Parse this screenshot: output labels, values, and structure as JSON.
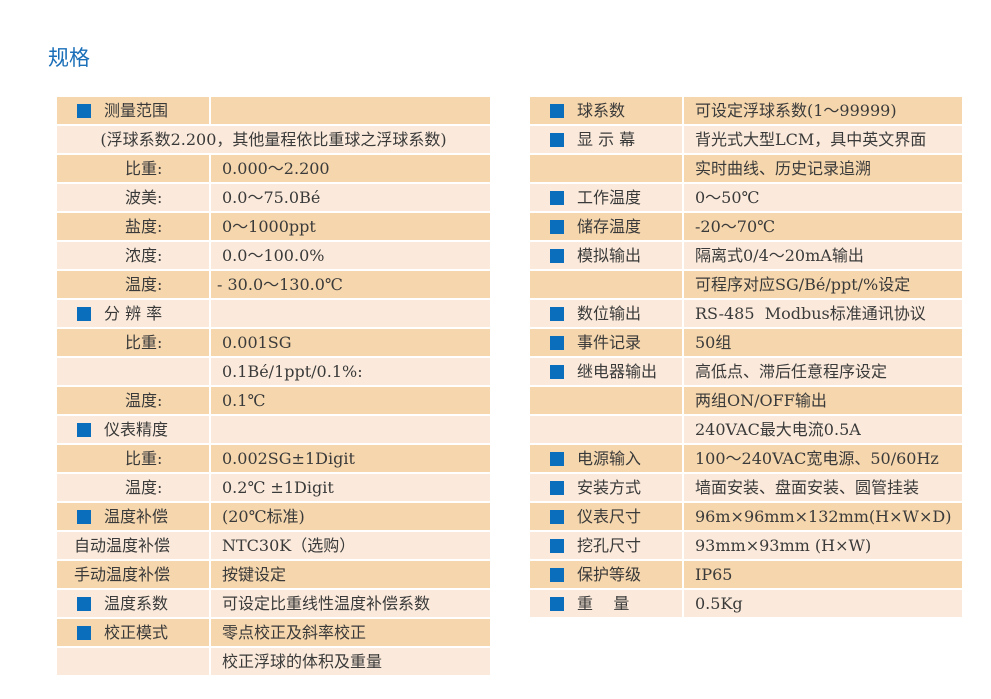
{
  "title": "规格",
  "colors": {
    "accent": "#0a6ebd",
    "row_dark": "#f5d6ad",
    "row_light": "#fbeadb"
  },
  "left": [
    {
      "marker": true,
      "label": "测量范围",
      "value": ""
    },
    {
      "full": "(浮球系数2.200，其他量程依比重球之浮球系数)"
    },
    {
      "label": "比重:",
      "value": "0.000～2.200"
    },
    {
      "label": "波美:",
      "value": "0.0～75.0Bé"
    },
    {
      "label": "盐度:",
      "value": "0～1000ppt"
    },
    {
      "label": "浓度:",
      "value": "0.0～100.0%"
    },
    {
      "label": "温度:",
      "value": "- 30.0～130.0℃"
    },
    {
      "marker": true,
      "label": "分 辨 率",
      "value": ""
    },
    {
      "label": "比重:",
      "value": "0.001SG"
    },
    {
      "label": "",
      "value": "0.1Bé/1ppt/0.1%:"
    },
    {
      "label": "温度:",
      "value": "0.1℃"
    },
    {
      "marker": true,
      "label": "仪表精度",
      "value": ""
    },
    {
      "label": "比重:",
      "value": "0.002SG±1Digit"
    },
    {
      "label": "温度:",
      "value": "0.2℃ ±1Digit"
    },
    {
      "marker": true,
      "label": "温度补偿",
      "value": "(20℃标准)"
    },
    {
      "plain": true,
      "label": "自动温度补偿",
      "value": "NTC30K（选购）"
    },
    {
      "plain": true,
      "label": "手动温度补偿",
      "value": "按键设定"
    },
    {
      "marker": true,
      "label": "温度系数",
      "value": "可设定比重线性温度补偿系数"
    },
    {
      "marker": true,
      "label": "校正模式",
      "value": "零点校正及斜率校正"
    },
    {
      "label": "",
      "value": "校正浮球的体积及重量"
    }
  ],
  "right": [
    {
      "marker": true,
      "label": "球系数",
      "value": "可设定浮球系数(1～99999)"
    },
    {
      "marker": true,
      "label": "显 示 幕",
      "value": "背光式大型LCM，具中英文界面"
    },
    {
      "label": "",
      "value": "实时曲线、历史记录追溯"
    },
    {
      "marker": true,
      "label": "工作温度",
      "value": "0～50℃"
    },
    {
      "marker": true,
      "label": "储存温度",
      "value": "-20～70℃"
    },
    {
      "marker": true,
      "label": "模拟输出",
      "value": "隔离式0/4～20mA输出"
    },
    {
      "label": "",
      "value": "可程序对应SG/Bé/ppt/%设定"
    },
    {
      "marker": true,
      "label": "数位输出",
      "value": "RS-485  Modbus标准通讯协议"
    },
    {
      "marker": true,
      "label": "事件记录",
      "value": "50组"
    },
    {
      "marker": true,
      "label": "继电器输出",
      "value": "高低点、滞后任意程序设定"
    },
    {
      "label": "",
      "value": "两组ON/OFF输出"
    },
    {
      "label": "",
      "value": "240VAC最大电流0.5A"
    },
    {
      "marker": true,
      "label": "电源输入",
      "value": "100～240VAC宽电源、50/60Hz"
    },
    {
      "marker": true,
      "label": "安装方式",
      "value": "墙面安装、盘面安装、圆管挂装"
    },
    {
      "marker": true,
      "label": "仪表尺寸",
      "value": "96m×96mm×132mm(H×W×D)"
    },
    {
      "marker": true,
      "label": "挖孔尺寸",
      "value": "93mm×93mm (H×W)"
    },
    {
      "marker": true,
      "label": "保护等级",
      "value": "IP65"
    },
    {
      "marker": true,
      "label": "重    量",
      "value": "0.5Kg"
    }
  ]
}
